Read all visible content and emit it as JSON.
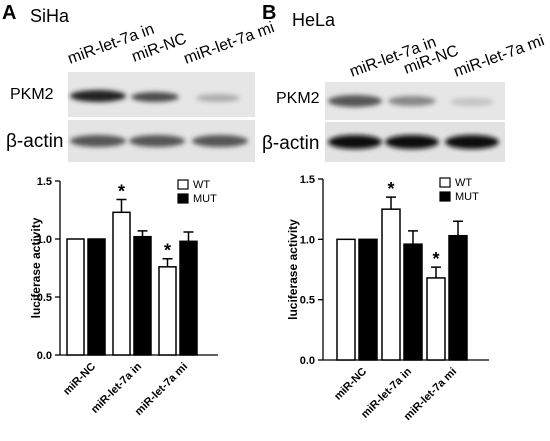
{
  "chart_data": [
    {
      "type": "bar",
      "panel": "A",
      "cell_line": "SiHa",
      "lanes": [
        "miR-let-7a in",
        "miR-NC",
        "miR-let-7a mi"
      ],
      "blot_labels": [
        "PKM2",
        "β-actin"
      ],
      "y_label": "luciferase activity",
      "categories": [
        "miR-NC",
        "miR-let-7a in",
        "miR-let-7a mi"
      ],
      "series": [
        {
          "name": "WT",
          "color": "#ffffff",
          "values": [
            1.0,
            1.23,
            0.76
          ],
          "errors": [
            0,
            0.11,
            0.07
          ],
          "annotations": [
            null,
            "*",
            "*"
          ]
        },
        {
          "name": "MUT",
          "color": "#000000",
          "values": [
            1.0,
            1.02,
            0.98
          ],
          "errors": [
            0,
            0.05,
            0.08
          ]
        }
      ],
      "ylim": [
        0,
        1.5
      ],
      "yticks": [
        {
          "value": 0,
          "label": "0.0"
        },
        {
          "value": 0.5,
          "label": "0.5"
        },
        {
          "value": 1,
          "label": "1.0"
        },
        {
          "value": 1.5,
          "label": "1.5"
        }
      ]
    },
    {
      "type": "bar",
      "panel": "B",
      "cell_line": "HeLa",
      "lanes": [
        "miR-let-7a in",
        "miR-NC",
        "miR-let-7a mi"
      ],
      "blot_labels": [
        "PKM2",
        "β-actin"
      ],
      "y_label": "luciferase activity",
      "categories": [
        "miR-NC",
        "miR-let-7a in",
        "miR-let-7a mi"
      ],
      "series": [
        {
          "name": "WT",
          "color": "#ffffff",
          "values": [
            1.0,
            1.25,
            0.68
          ],
          "errors": [
            0,
            0.1,
            0.09
          ],
          "annotations": [
            null,
            "*",
            "*"
          ]
        },
        {
          "name": "MUT",
          "color": "#000000",
          "values": [
            1.0,
            0.96,
            1.03
          ],
          "errors": [
            0,
            0.11,
            0.12
          ]
        }
      ],
      "ylim": [
        0,
        1.5
      ],
      "yticks": [
        {
          "value": 0,
          "label": "0.0"
        },
        {
          "value": 0.5,
          "label": "0.5"
        },
        {
          "value": 1,
          "label": "1.0"
        },
        {
          "value": 1.5,
          "label": "1.5"
        }
      ]
    }
  ]
}
